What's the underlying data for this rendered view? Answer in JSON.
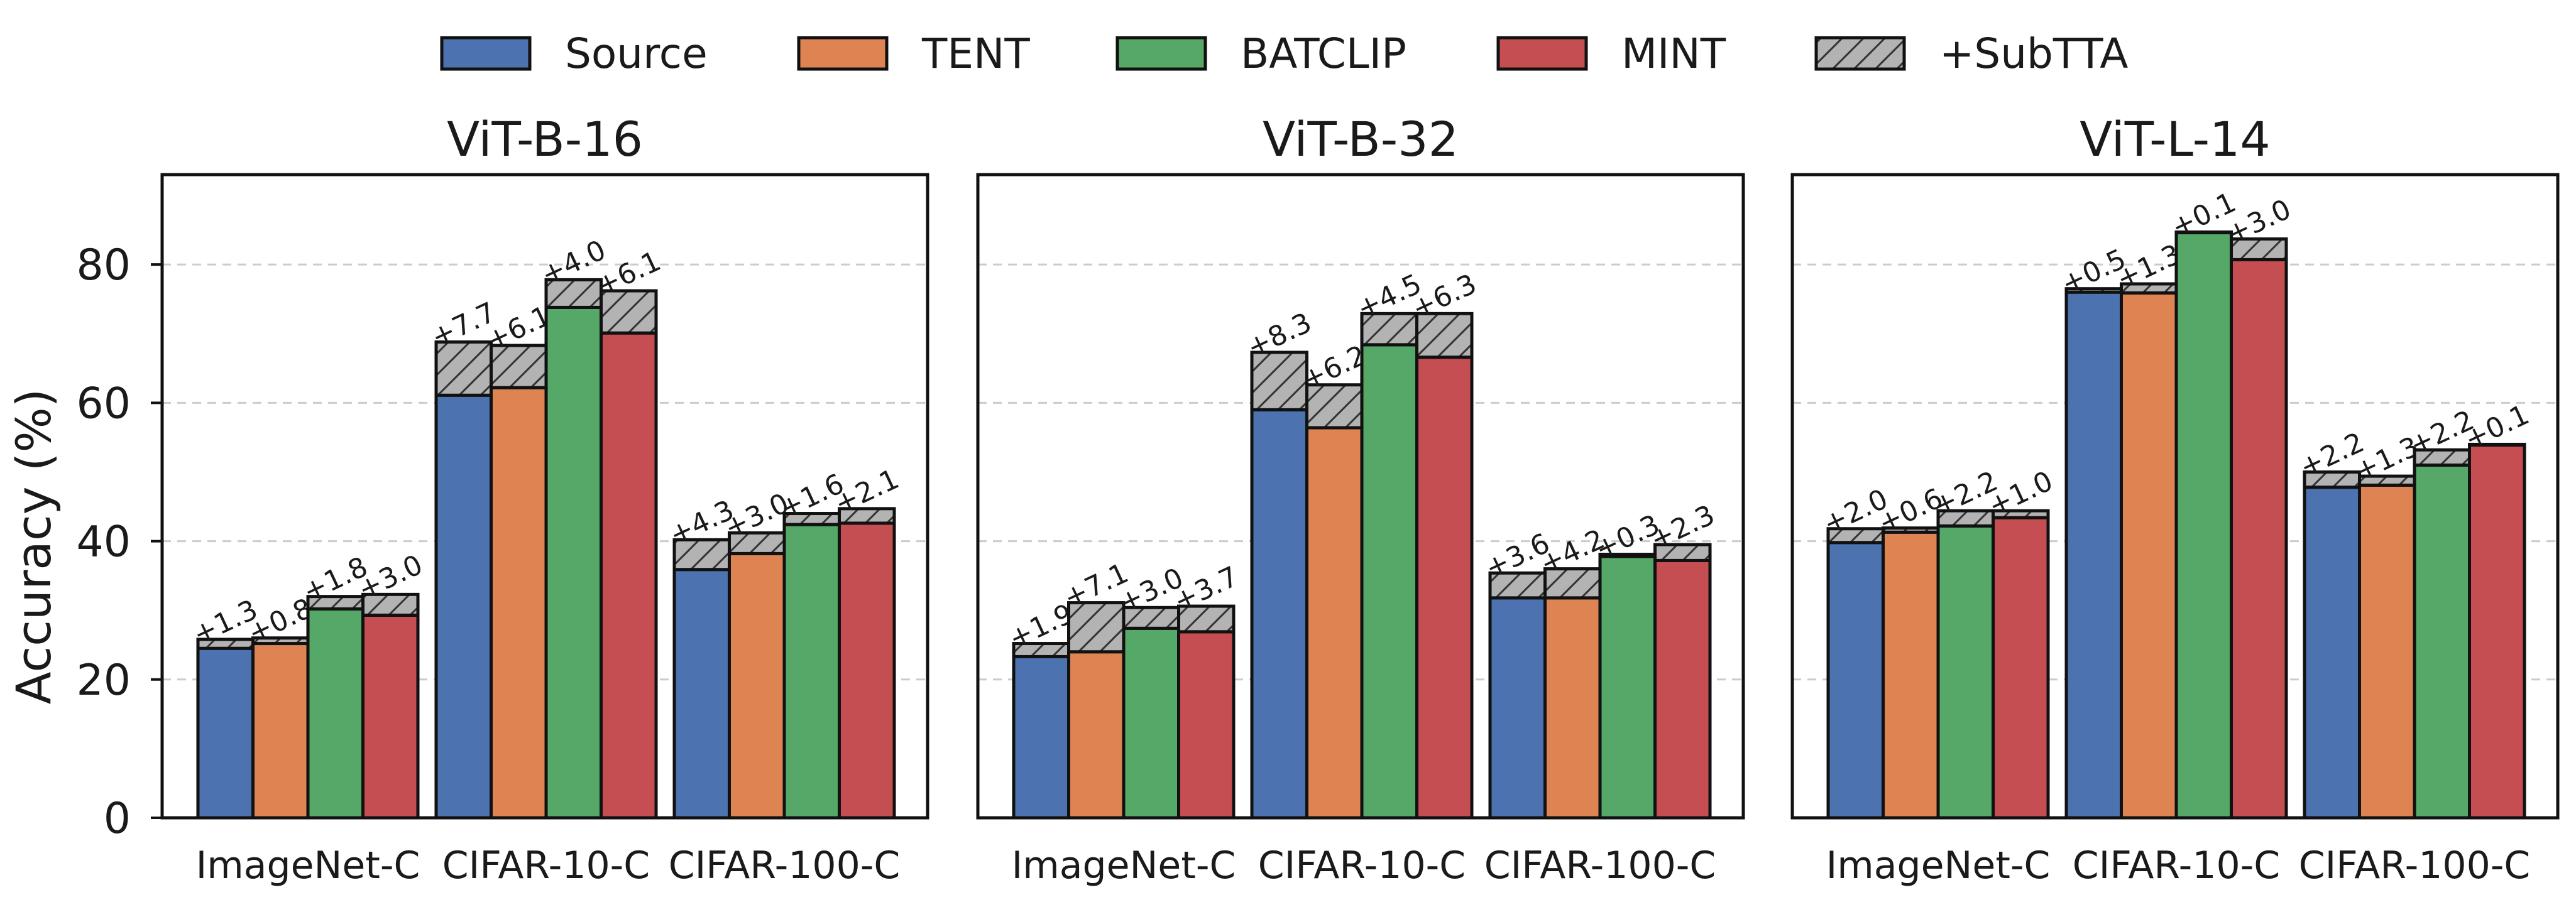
{
  "chart_data": {
    "type": "bar",
    "variant": "grouped stacked bars, three panels",
    "ylabel": "Accuracy (%)",
    "ylim": [
      0,
      93
    ],
    "yticks": [
      0,
      20,
      40,
      60,
      80
    ],
    "grid": "horizontal dashed",
    "legend": {
      "placement": "top-center",
      "entries": [
        "Source",
        "TENT",
        "BATCLIP",
        "MINT",
        "+SubTTA"
      ]
    },
    "colors": {
      "Source": "#4c72b0",
      "TENT": "#dd8452",
      "BATCLIP": "#55a868",
      "MINT": "#c44e52",
      "+SubTTA": "#b3b3b3"
    },
    "categories": [
      "ImageNet-C",
      "CIFAR-10-C",
      "CIFAR-100-C"
    ],
    "methods": [
      "Source",
      "TENT",
      "BATCLIP",
      "MINT"
    ],
    "panels": [
      {
        "title": "ViT-B-16",
        "base": [
          [
            24.5,
            25.2,
            30.2,
            29.3
          ],
          [
            61.1,
            62.2,
            73.8,
            70.1
          ],
          [
            35.9,
            38.2,
            42.4,
            42.6
          ]
        ],
        "gain": [
          [
            1.3,
            0.8,
            1.8,
            3.0
          ],
          [
            7.7,
            6.1,
            4.0,
            6.1
          ],
          [
            4.3,
            3.0,
            1.6,
            2.1
          ]
        ],
        "labels": [
          [
            "+1.3",
            "+0.8",
            "+1.8",
            "+3.0"
          ],
          [
            "+7.7",
            "+6.1",
            "+4.0",
            "+6.1"
          ],
          [
            "+4.3",
            "+3.0",
            "+1.6",
            "+2.1"
          ]
        ]
      },
      {
        "title": "ViT-B-32",
        "base": [
          [
            23.3,
            24.0,
            27.4,
            26.9
          ],
          [
            59.0,
            56.4,
            68.4,
            66.6
          ],
          [
            31.8,
            31.8,
            37.8,
            37.2
          ]
        ],
        "gain": [
          [
            1.9,
            7.1,
            3.0,
            3.7
          ],
          [
            8.3,
            6.2,
            4.5,
            6.3
          ],
          [
            3.6,
            4.2,
            0.3,
            2.3
          ]
        ],
        "labels": [
          [
            "+1.9",
            "+7.1",
            "+3.0",
            "+3.7"
          ],
          [
            "+8.3",
            "+6.2",
            "+4.5",
            "+6.3"
          ],
          [
            "+3.6",
            "+4.2",
            "+0.3",
            "+2.3"
          ]
        ]
      },
      {
        "title": "ViT-L-14",
        "base": [
          [
            39.8,
            41.3,
            42.2,
            43.4
          ],
          [
            76.0,
            75.9,
            84.6,
            80.7
          ],
          [
            47.8,
            48.1,
            51.0,
            53.9
          ]
        ],
        "gain": [
          [
            2.0,
            0.6,
            2.2,
            1.0
          ],
          [
            0.5,
            1.3,
            0.1,
            3.0
          ],
          [
            2.2,
            1.3,
            2.2,
            0.1
          ]
        ],
        "labels": [
          [
            "+2.0",
            "+0.6",
            "+2.2",
            "+1.0"
          ],
          [
            "+0.5",
            "+1.3",
            "+0.1",
            "+3.0"
          ],
          [
            "+2.2",
            "+1.3",
            "+2.2",
            "+0.1"
          ]
        ]
      }
    ]
  }
}
